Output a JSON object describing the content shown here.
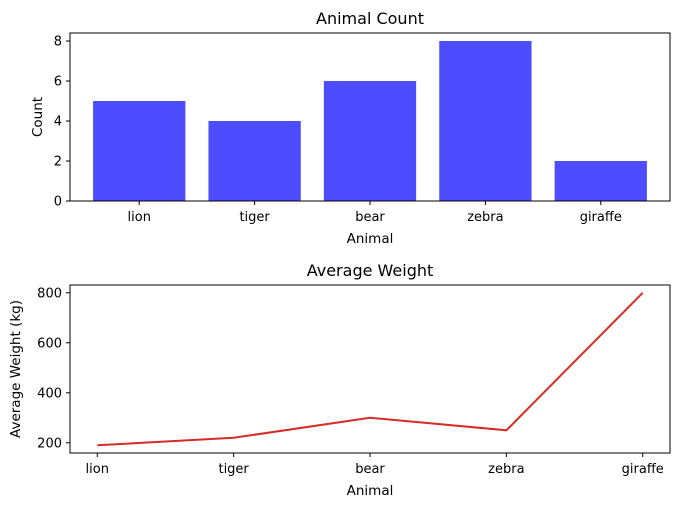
{
  "chart_data": [
    {
      "type": "bar",
      "title": "Animal Count",
      "xlabel": "Animal",
      "ylabel": "Count",
      "categories": [
        "lion",
        "tiger",
        "bear",
        "zebra",
        "giraffe"
      ],
      "values": [
        5,
        4,
        6,
        8,
        2
      ],
      "ylim": [
        0,
        8.4
      ],
      "yticks": [
        "0",
        "2",
        "4",
        "6",
        "8"
      ],
      "bar_color": "#4d4dff",
      "grid": false
    },
    {
      "type": "line",
      "title": "Average Weight",
      "xlabel": "Animal",
      "ylabel": "Average Weight (kg)",
      "categories": [
        "lion",
        "tiger",
        "bear",
        "zebra",
        "giraffe"
      ],
      "values": [
        190,
        220,
        300,
        250,
        800
      ],
      "ylim": [
        159,
        831
      ],
      "yticks": [
        "200",
        "400",
        "600",
        "800"
      ],
      "line_color": "#d62c28",
      "grid": false
    }
  ]
}
